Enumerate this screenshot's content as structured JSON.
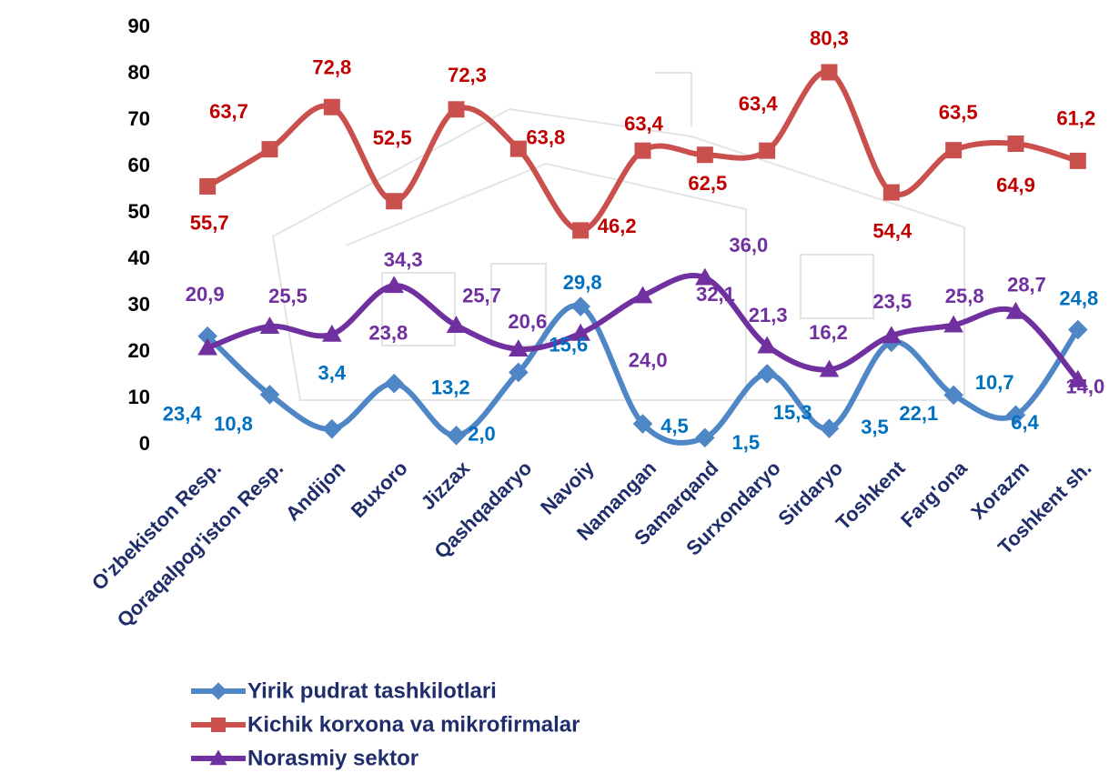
{
  "chart_data": {
    "type": "line",
    "categories": [
      "O'zbekiston Resp.",
      "Qoraqalpog'iston Resp.",
      "Andijon",
      "Buxoro",
      "Jizzax",
      "Qashqadaryo",
      "Navoiy",
      "Namangan",
      "Samarqand",
      "Surxondaryo",
      "Sirdaryo",
      "Toshkent",
      "Farg'ona",
      "Xorazm",
      "Toshkent sh."
    ],
    "series": [
      {
        "name": "Yirik pudrat tashkilotlari",
        "color": "#4f86c6",
        "label_color": "#0070c0",
        "marker": "diamond",
        "values": [
          23.4,
          10.8,
          3.4,
          13.2,
          2.0,
          15.6,
          29.8,
          4.5,
          1.5,
          15.3,
          3.5,
          22.1,
          10.7,
          6.4,
          24.8
        ],
        "value_labels": [
          "23,4",
          "10,8",
          "3,4",
          "13,2",
          "2,0",
          "15,6",
          "29,8",
          "4,5",
          "1,5",
          "15,3",
          "3,5",
          "22,1",
          "10,7",
          "6,4",
          "24,8"
        ]
      },
      {
        "name": "Kichik korxona va mikrofirmalar",
        "color": "#c9504d",
        "label_color": "#c00000",
        "marker": "square",
        "values": [
          55.7,
          63.7,
          72.8,
          52.5,
          72.3,
          63.8,
          46.2,
          63.4,
          62.5,
          63.4,
          80.3,
          54.4,
          63.5,
          64.9,
          61.2
        ],
        "value_labels": [
          "55,7",
          "63,7",
          "72,8",
          "52,5",
          "72,3",
          "63,8",
          "46,2",
          "63,4",
          "62,5",
          "63,4",
          "80,3",
          "54,4",
          "63,5",
          "64,9",
          "61,2"
        ]
      },
      {
        "name": "Norasmiy sektor",
        "color": "#7030a0",
        "label_color": "#7030a0",
        "marker": "triangle",
        "values": [
          20.9,
          25.5,
          23.8,
          34.3,
          25.7,
          20.6,
          24.0,
          32.1,
          36.0,
          21.3,
          16.2,
          23.5,
          25.8,
          28.7,
          14.0
        ],
        "value_labels": [
          "20,9",
          "25,5",
          "23,8",
          "34,3",
          "25,7",
          "20,6",
          "24,0",
          "32,1",
          "36,0",
          "21,3",
          "16,2",
          "23,5",
          "25,8",
          "28,7",
          "14,0"
        ]
      }
    ],
    "ylim": [
      0,
      90
    ],
    "yticks": [
      0,
      10,
      20,
      30,
      40,
      50,
      60,
      70,
      80,
      90
    ],
    "grid": false,
    "smooth": true,
    "legend": "bottom"
  }
}
